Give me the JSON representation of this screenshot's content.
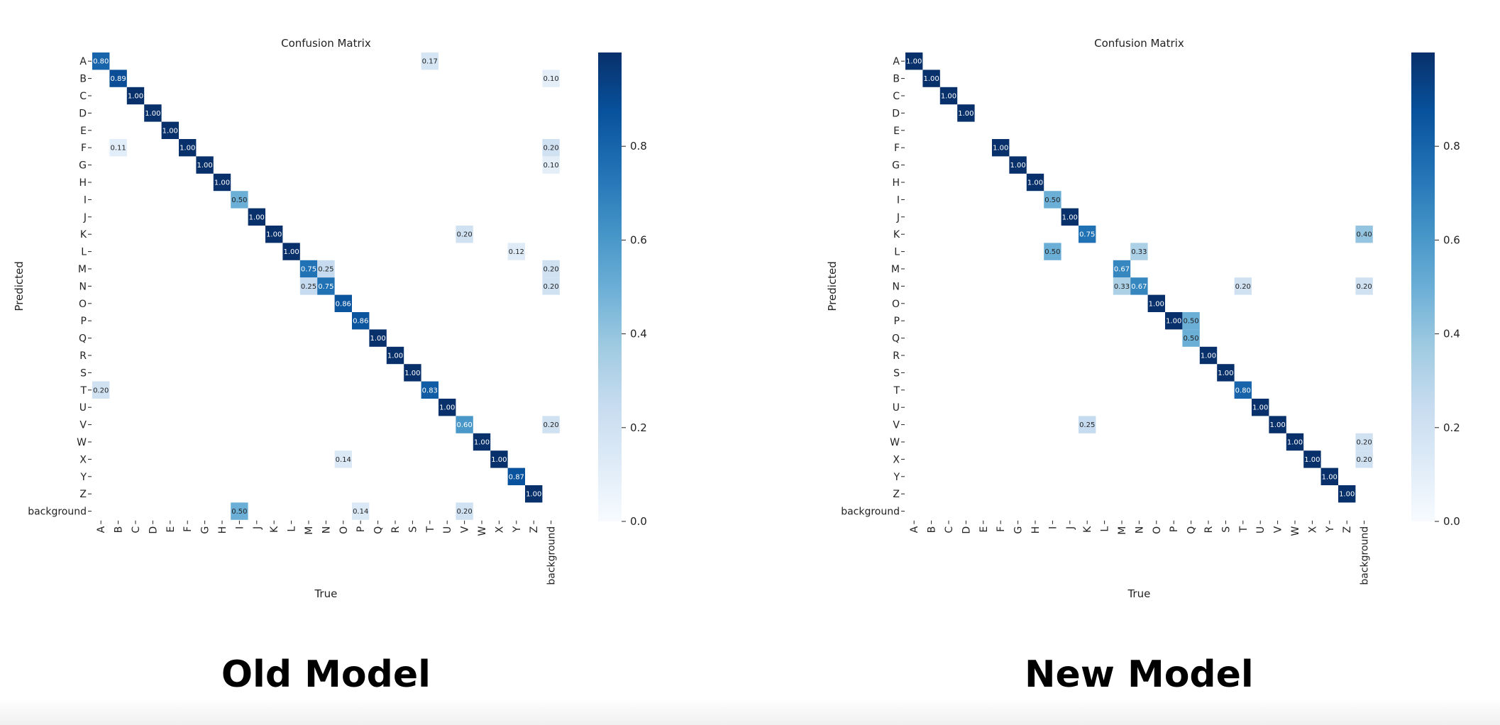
{
  "chart_data": [
    {
      "type": "heatmap",
      "title": "Confusion Matrix",
      "xlabel": "True",
      "ylabel": "Predicted",
      "caption": "Old Model",
      "labels": [
        "A",
        "B",
        "C",
        "D",
        "E",
        "F",
        "G",
        "H",
        "I",
        "J",
        "K",
        "L",
        "M",
        "N",
        "O",
        "P",
        "Q",
        "R",
        "S",
        "T",
        "U",
        "V",
        "W",
        "X",
        "Y",
        "Z",
        "background"
      ],
      "cells": [
        {
          "row": 0,
          "col": 0,
          "value": 0.8
        },
        {
          "row": 0,
          "col": 19,
          "value": 0.17
        },
        {
          "row": 1,
          "col": 1,
          "value": 0.89
        },
        {
          "row": 1,
          "col": 26,
          "value": 0.1
        },
        {
          "row": 2,
          "col": 2,
          "value": 1.0
        },
        {
          "row": 3,
          "col": 3,
          "value": 1.0
        },
        {
          "row": 4,
          "col": 4,
          "value": 1.0
        },
        {
          "row": 5,
          "col": 1,
          "value": 0.11
        },
        {
          "row": 5,
          "col": 5,
          "value": 1.0
        },
        {
          "row": 5,
          "col": 26,
          "value": 0.2
        },
        {
          "row": 6,
          "col": 6,
          "value": 1.0
        },
        {
          "row": 6,
          "col": 26,
          "value": 0.1
        },
        {
          "row": 7,
          "col": 7,
          "value": 1.0
        },
        {
          "row": 8,
          "col": 8,
          "value": 0.5
        },
        {
          "row": 9,
          "col": 9,
          "value": 1.0
        },
        {
          "row": 10,
          "col": 10,
          "value": 1.0
        },
        {
          "row": 10,
          "col": 21,
          "value": 0.2
        },
        {
          "row": 11,
          "col": 11,
          "value": 1.0
        },
        {
          "row": 11,
          "col": 24,
          "value": 0.12
        },
        {
          "row": 12,
          "col": 12,
          "value": 0.75
        },
        {
          "row": 12,
          "col": 13,
          "value": 0.25
        },
        {
          "row": 12,
          "col": 26,
          "value": 0.2
        },
        {
          "row": 13,
          "col": 12,
          "value": 0.25
        },
        {
          "row": 13,
          "col": 13,
          "value": 0.75
        },
        {
          "row": 13,
          "col": 26,
          "value": 0.2
        },
        {
          "row": 14,
          "col": 14,
          "value": 0.86
        },
        {
          "row": 15,
          "col": 15,
          "value": 0.86
        },
        {
          "row": 16,
          "col": 16,
          "value": 1.0
        },
        {
          "row": 17,
          "col": 17,
          "value": 1.0
        },
        {
          "row": 18,
          "col": 18,
          "value": 1.0
        },
        {
          "row": 19,
          "col": 0,
          "value": 0.2
        },
        {
          "row": 19,
          "col": 19,
          "value": 0.83
        },
        {
          "row": 20,
          "col": 20,
          "value": 1.0
        },
        {
          "row": 21,
          "col": 21,
          "value": 0.6
        },
        {
          "row": 21,
          "col": 26,
          "value": 0.2
        },
        {
          "row": 22,
          "col": 22,
          "value": 1.0
        },
        {
          "row": 23,
          "col": 14,
          "value": 0.14
        },
        {
          "row": 23,
          "col": 23,
          "value": 1.0
        },
        {
          "row": 24,
          "col": 24,
          "value": 0.87
        },
        {
          "row": 25,
          "col": 25,
          "value": 1.0
        },
        {
          "row": 26,
          "col": 8,
          "value": 0.5
        },
        {
          "row": 26,
          "col": 15,
          "value": 0.14
        },
        {
          "row": 26,
          "col": 21,
          "value": 0.2
        }
      ],
      "colorbar": {
        "ticks": [
          "0.0",
          "0.2",
          "0.4",
          "0.6",
          "0.8"
        ],
        "range": [
          0,
          1
        ]
      },
      "colormap": "Blues"
    },
    {
      "type": "heatmap",
      "title": "Confusion Matrix",
      "xlabel": "True",
      "ylabel": "Predicted",
      "caption": "New Model",
      "labels": [
        "A",
        "B",
        "C",
        "D",
        "E",
        "F",
        "G",
        "H",
        "I",
        "J",
        "K",
        "L",
        "M",
        "N",
        "O",
        "P",
        "Q",
        "R",
        "S",
        "T",
        "U",
        "V",
        "W",
        "X",
        "Y",
        "Z",
        "background"
      ],
      "cells": [
        {
          "row": 0,
          "col": 0,
          "value": 1.0
        },
        {
          "row": 1,
          "col": 1,
          "value": 1.0
        },
        {
          "row": 2,
          "col": 2,
          "value": 1.0
        },
        {
          "row": 3,
          "col": 3,
          "value": 1.0
        },
        {
          "row": 5,
          "col": 5,
          "value": 1.0
        },
        {
          "row": 6,
          "col": 6,
          "value": 1.0
        },
        {
          "row": 7,
          "col": 7,
          "value": 1.0
        },
        {
          "row": 8,
          "col": 8,
          "value": 0.5
        },
        {
          "row": 9,
          "col": 9,
          "value": 1.0
        },
        {
          "row": 10,
          "col": 10,
          "value": 0.75
        },
        {
          "row": 10,
          "col": 26,
          "value": 0.4
        },
        {
          "row": 11,
          "col": 8,
          "value": 0.5
        },
        {
          "row": 11,
          "col": 13,
          "value": 0.33
        },
        {
          "row": 12,
          "col": 12,
          "value": 0.67
        },
        {
          "row": 13,
          "col": 12,
          "value": 0.33
        },
        {
          "row": 13,
          "col": 13,
          "value": 0.67
        },
        {
          "row": 13,
          "col": 19,
          "value": 0.2
        },
        {
          "row": 13,
          "col": 26,
          "value": 0.2
        },
        {
          "row": 14,
          "col": 14,
          "value": 1.0
        },
        {
          "row": 15,
          "col": 15,
          "value": 1.0
        },
        {
          "row": 15,
          "col": 16,
          "value": 0.5
        },
        {
          "row": 16,
          "col": 16,
          "value": 0.5
        },
        {
          "row": 17,
          "col": 17,
          "value": 1.0
        },
        {
          "row": 18,
          "col": 18,
          "value": 1.0
        },
        {
          "row": 19,
          "col": 19,
          "value": 0.8
        },
        {
          "row": 20,
          "col": 20,
          "value": 1.0
        },
        {
          "row": 21,
          "col": 10,
          "value": 0.25
        },
        {
          "row": 21,
          "col": 21,
          "value": 1.0
        },
        {
          "row": 22,
          "col": 22,
          "value": 1.0
        },
        {
          "row": 22,
          "col": 26,
          "value": 0.2
        },
        {
          "row": 23,
          "col": 23,
          "value": 1.0
        },
        {
          "row": 23,
          "col": 26,
          "value": 0.2
        },
        {
          "row": 24,
          "col": 24,
          "value": 1.0
        },
        {
          "row": 25,
          "col": 25,
          "value": 1.0
        }
      ],
      "colorbar": {
        "ticks": [
          "0.0",
          "0.2",
          "0.4",
          "0.6",
          "0.8"
        ],
        "range": [
          0,
          1
        ]
      },
      "colormap": "Blues"
    }
  ]
}
